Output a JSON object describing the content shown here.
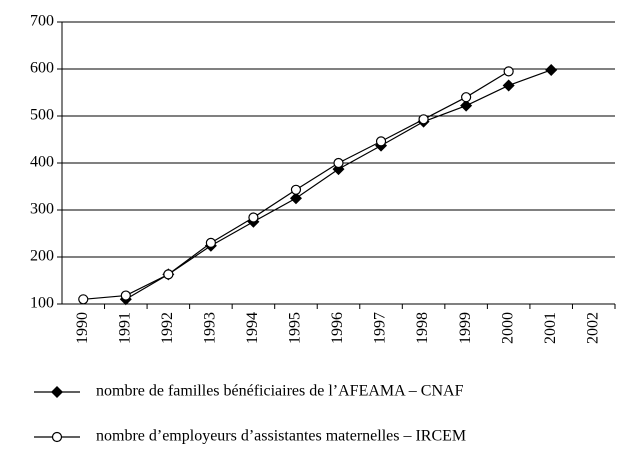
{
  "chart_data": {
    "type": "line",
    "categories": [
      "1990",
      "1991",
      "1992",
      "1993",
      "1994",
      "1995",
      "1996",
      "1997",
      "1998",
      "1999",
      "2000",
      "2001",
      "2002"
    ],
    "series": [
      {
        "name": "nombre de familles bénéficiaires de l’AFEAMA – CNAF",
        "color": "#000000",
        "marker": "diamond",
        "values": [
          null,
          110,
          163,
          224,
          275,
          325,
          387,
          437,
          488,
          522,
          565,
          598,
          null
        ]
      },
      {
        "name": "nombre d’employeurs d’assistantes maternelles – IRCEM",
        "color": "#000000",
        "marker": "circle",
        "values": [
          110,
          118,
          163,
          230,
          284,
          343,
          400,
          446,
          493,
          540,
          595,
          null,
          null
        ]
      }
    ],
    "ylim": [
      100,
      700
    ],
    "yticks": [
      100,
      200,
      300,
      400,
      500,
      600,
      700
    ],
    "grid": true,
    "legend": "bottom"
  }
}
